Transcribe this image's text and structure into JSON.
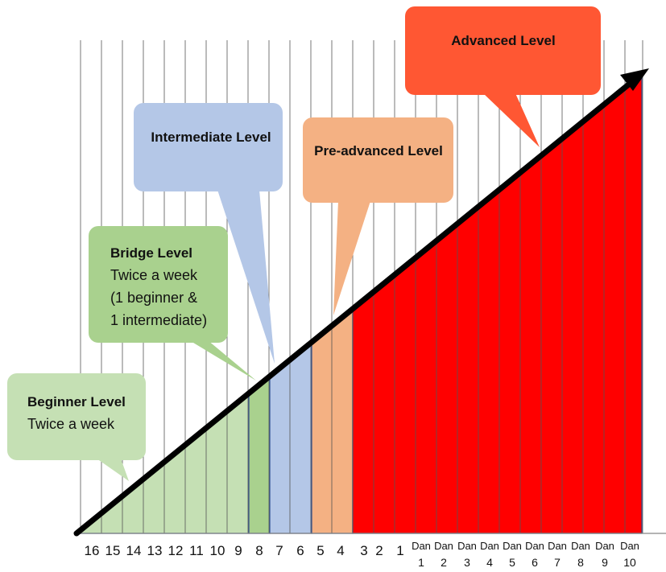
{
  "colors": {
    "beginner": "#c5e0b4",
    "bridge": "#a9d18e",
    "intermediate": "#b4c7e7",
    "pre_advanced": "#f4b183",
    "advanced_bubble": "#ff5733",
    "advanced_fill": "#ff0000",
    "grid": "#555555",
    "arrow": "#000000"
  },
  "axis_ticks": [
    {
      "lines": [
        "16"
      ]
    },
    {
      "lines": [
        "15"
      ]
    },
    {
      "lines": [
        "14"
      ]
    },
    {
      "lines": [
        "13"
      ]
    },
    {
      "lines": [
        "12"
      ]
    },
    {
      "lines": [
        "11"
      ]
    },
    {
      "lines": [
        "10"
      ]
    },
    {
      "lines": [
        "9"
      ]
    },
    {
      "lines": [
        "8"
      ]
    },
    {
      "lines": [
        "7"
      ]
    },
    {
      "lines": [
        "6"
      ]
    },
    {
      "lines": [
        "5"
      ]
    },
    {
      "lines": [
        "4"
      ]
    },
    {
      "lines": [
        "3"
      ]
    },
    {
      "lines": [
        "2"
      ]
    },
    {
      "lines": [
        "1"
      ]
    },
    {
      "lines": [
        "Dan",
        "1"
      ]
    },
    {
      "lines": [
        "Dan",
        "2"
      ]
    },
    {
      "lines": [
        "Dan",
        "3"
      ]
    },
    {
      "lines": [
        "Dan",
        "4"
      ]
    },
    {
      "lines": [
        "Dan",
        "5"
      ]
    },
    {
      "lines": [
        "Dan",
        "6"
      ]
    },
    {
      "lines": [
        "Dan",
        "7"
      ]
    },
    {
      "lines": [
        "Dan",
        "8"
      ]
    },
    {
      "lines": [
        "Dan",
        "9"
      ]
    },
    {
      "lines": [
        "Dan",
        "10"
      ]
    }
  ],
  "bubbles": [
    {
      "id": "advanced",
      "title": "Advanced Level",
      "lines": []
    },
    {
      "id": "intermediate",
      "title": "Intermediate Level",
      "lines": []
    },
    {
      "id": "pre-advanced",
      "title": "Pre-advanced Level",
      "lines": []
    },
    {
      "id": "bridge",
      "title": "Bridge Level",
      "lines": [
        "Twice a week",
        "(1 beginner &",
        "1 intermediate)"
      ]
    },
    {
      "id": "beginner",
      "title": "Beginner Level",
      "lines": [
        "Twice a week"
      ]
    }
  ]
}
